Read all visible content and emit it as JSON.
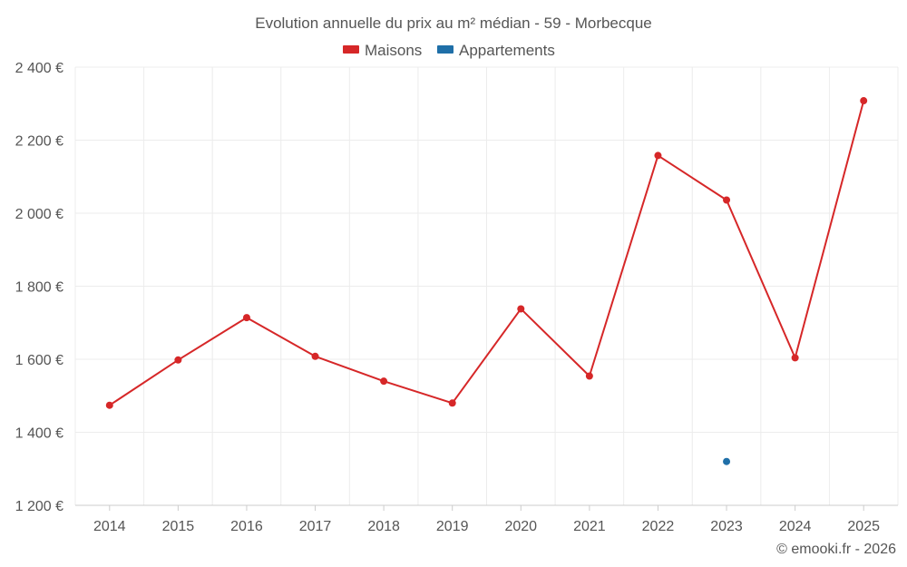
{
  "chart_data": {
    "type": "line",
    "title": "Evolution annuelle du prix au m² médian - 59 - Morbecque",
    "categories": [
      "2014",
      "2015",
      "2016",
      "2017",
      "2018",
      "2019",
      "2020",
      "2021",
      "2022",
      "2023",
      "2024",
      "2025"
    ],
    "series": [
      {
        "name": "Maisons",
        "color": "#d62728",
        "values": [
          1474,
          1598,
          1714,
          1608,
          1540,
          1480,
          1738,
          1554,
          2158,
          2036,
          1604,
          2308
        ]
      },
      {
        "name": "Appartements",
        "color": "#1f6fa8",
        "values": [
          null,
          null,
          null,
          null,
          null,
          null,
          null,
          null,
          null,
          1320,
          null,
          null
        ]
      }
    ],
    "y_ticks": [
      1200,
      1400,
      1600,
      1800,
      2000,
      2200,
      2400
    ],
    "y_tick_labels": [
      "1 200 €",
      "1 400 €",
      "1 600 €",
      "1 800 €",
      "2 000 €",
      "2 200 €",
      "2 400 €"
    ],
    "ylim": [
      1200,
      2400
    ],
    "xlabel": "",
    "ylabel": "",
    "grid": true,
    "legend_position": "top-center"
  },
  "credit": "© emooki.fr - 2026"
}
